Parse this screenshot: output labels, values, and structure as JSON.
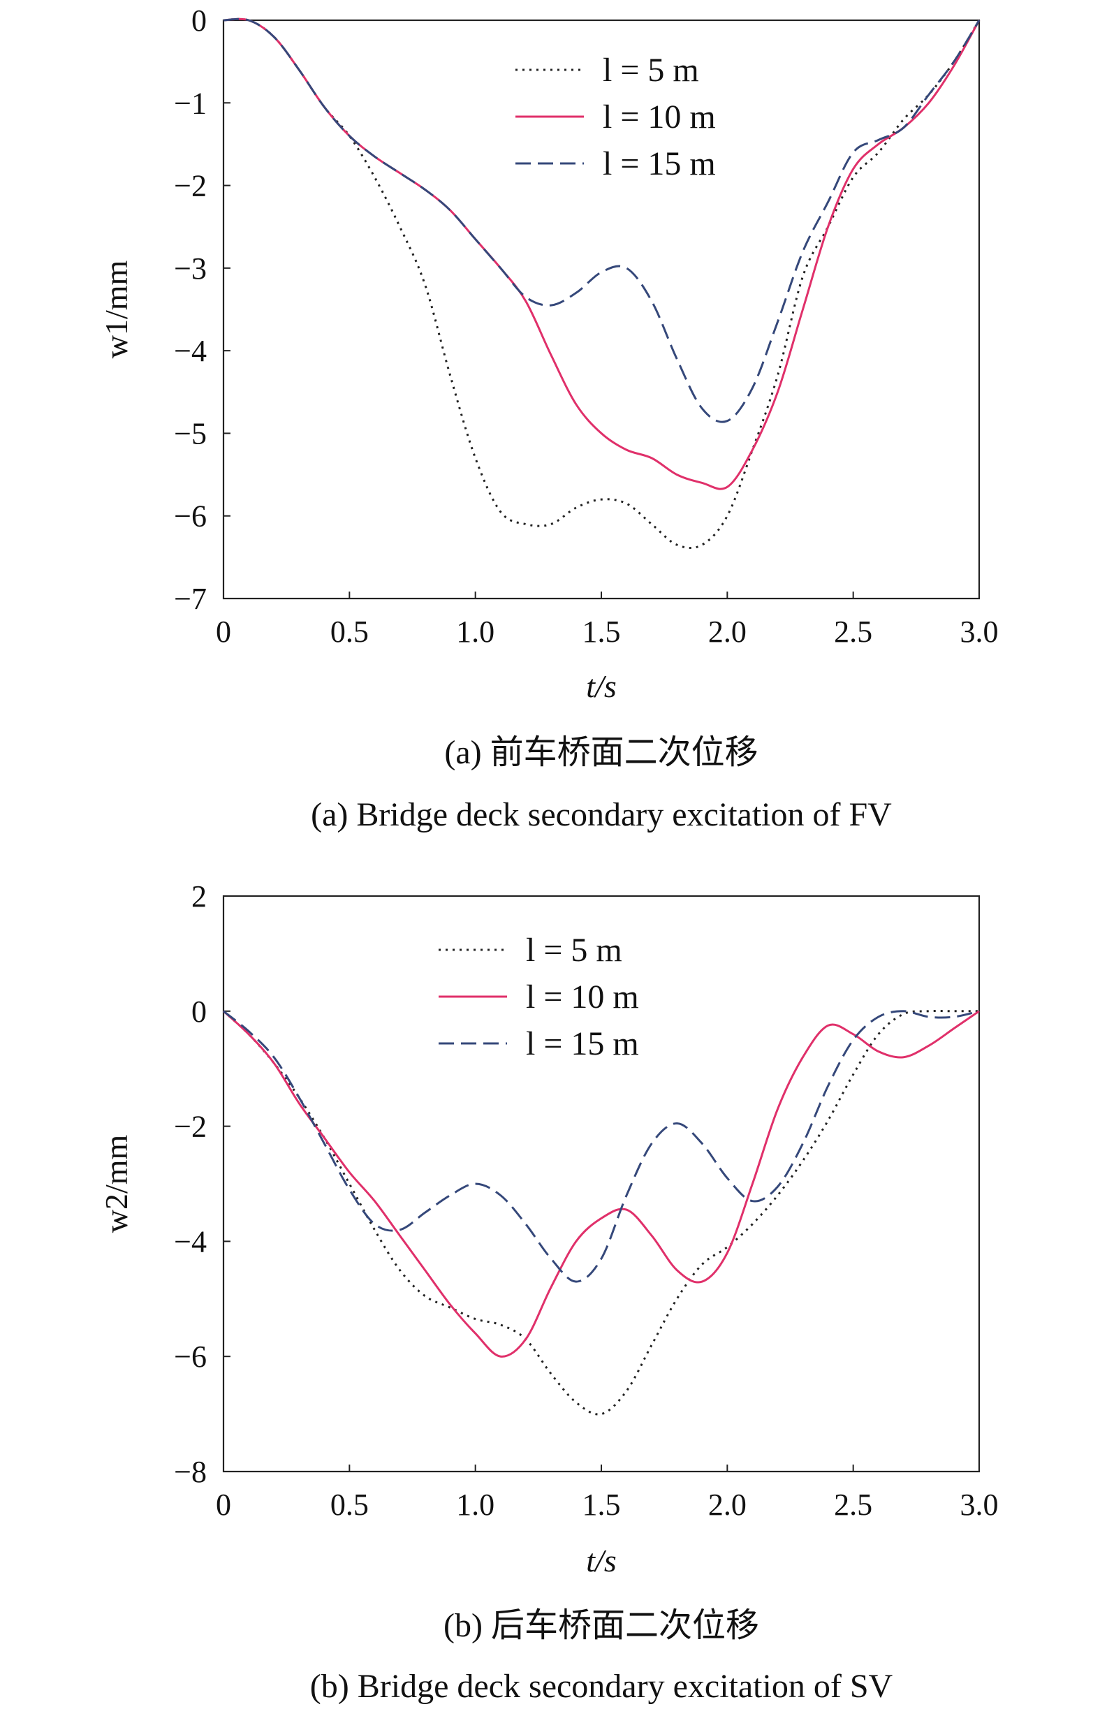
{
  "chart_data": [
    {
      "type": "line",
      "caption_cn": "(a) 前车桥面二次位移",
      "caption_en": "(a) Bridge deck secondary excitation of FV",
      "xlabel": "t/s",
      "ylabel": "w1/mm",
      "xlim": [
        0,
        3.0
      ],
      "ylim": [
        -7,
        0
      ],
      "xticks": [
        "0",
        "0.5",
        "1.0",
        "1.5",
        "2.0",
        "2.5",
        "3.0"
      ],
      "yticks": [
        "0",
        "−1",
        "−2",
        "−3",
        "−4",
        "−5",
        "−6",
        "−7"
      ],
      "legend_position": "top-center",
      "series": [
        {
          "name": "l = 5 m",
          "style": "dotted",
          "color": "#222222",
          "x": [
            0,
            0.1,
            0.2,
            0.3,
            0.4,
            0.5,
            0.6,
            0.7,
            0.8,
            0.9,
            1.0,
            1.1,
            1.2,
            1.3,
            1.4,
            1.5,
            1.6,
            1.7,
            1.8,
            1.9,
            2.0,
            2.1,
            2.2,
            2.3,
            2.4,
            2.5,
            2.6,
            2.7,
            2.8,
            2.9,
            3.0
          ],
          "y": [
            0,
            0,
            -0.2,
            -0.6,
            -1.05,
            -1.4,
            -1.9,
            -2.5,
            -3.2,
            -4.3,
            -5.3,
            -5.95,
            -6.1,
            -6.1,
            -5.9,
            -5.8,
            -5.85,
            -6.1,
            -6.35,
            -6.35,
            -6.0,
            -5.2,
            -4.3,
            -3.1,
            -2.5,
            -1.9,
            -1.6,
            -1.2,
            -0.9,
            -0.5,
            0
          ]
        },
        {
          "name": "l = 10 m",
          "style": "solid",
          "color": "#e0306a",
          "x": [
            0,
            0.1,
            0.2,
            0.3,
            0.4,
            0.5,
            0.6,
            0.7,
            0.8,
            0.9,
            1.0,
            1.1,
            1.2,
            1.3,
            1.4,
            1.5,
            1.6,
            1.7,
            1.8,
            1.9,
            2.0,
            2.1,
            2.2,
            2.3,
            2.4,
            2.5,
            2.6,
            2.7,
            2.8,
            2.9,
            3.0
          ],
          "y": [
            0,
            0,
            -0.2,
            -0.6,
            -1.05,
            -1.4,
            -1.65,
            -1.85,
            -2.05,
            -2.3,
            -2.65,
            -3.0,
            -3.4,
            -4.05,
            -4.65,
            -5.0,
            -5.2,
            -5.3,
            -5.5,
            -5.6,
            -5.65,
            -5.2,
            -4.5,
            -3.5,
            -2.5,
            -1.8,
            -1.5,
            -1.3,
            -1.0,
            -0.55,
            0
          ]
        },
        {
          "name": "l = 15 m",
          "style": "dashed",
          "color": "#35487a",
          "x": [
            0,
            0.1,
            0.2,
            0.3,
            0.4,
            0.5,
            0.6,
            0.7,
            0.8,
            0.9,
            1.0,
            1.1,
            1.2,
            1.3,
            1.4,
            1.5,
            1.6,
            1.7,
            1.8,
            1.9,
            2.0,
            2.1,
            2.2,
            2.3,
            2.4,
            2.5,
            2.6,
            2.7,
            2.8,
            2.9,
            3.0
          ],
          "y": [
            0,
            0,
            -0.2,
            -0.6,
            -1.05,
            -1.4,
            -1.65,
            -1.85,
            -2.05,
            -2.3,
            -2.65,
            -3.0,
            -3.35,
            -3.45,
            -3.3,
            -3.05,
            -3.0,
            -3.4,
            -4.1,
            -4.7,
            -4.85,
            -4.45,
            -3.65,
            -2.8,
            -2.2,
            -1.6,
            -1.45,
            -1.3,
            -0.9,
            -0.5,
            0
          ]
        }
      ]
    },
    {
      "type": "line",
      "caption_cn": "(b) 后车桥面二次位移",
      "caption_en": "(b) Bridge deck secondary excitation of SV",
      "xlabel": "t/s",
      "ylabel": "w2/mm",
      "xlim": [
        0,
        3.0
      ],
      "ylim": [
        -8,
        2
      ],
      "xticks": [
        "0",
        "0.5",
        "1.0",
        "1.5",
        "2.0",
        "2.5",
        "3.0"
      ],
      "yticks": [
        "2",
        "0",
        "−2",
        "−4",
        "−6",
        "−8"
      ],
      "legend_position": "top-center",
      "series": [
        {
          "name": "l = 5 m",
          "style": "dotted",
          "color": "#222222",
          "x": [
            0,
            0.1,
            0.2,
            0.3,
            0.4,
            0.5,
            0.6,
            0.7,
            0.8,
            0.9,
            1.0,
            1.1,
            1.2,
            1.3,
            1.4,
            1.5,
            1.6,
            1.7,
            1.8,
            1.9,
            2.0,
            2.1,
            2.2,
            2.3,
            2.4,
            2.5,
            2.6,
            2.7,
            2.8,
            2.9,
            3.0
          ],
          "y": [
            0,
            -0.4,
            -0.9,
            -1.5,
            -2.2,
            -3.0,
            -3.8,
            -4.5,
            -4.95,
            -5.15,
            -5.35,
            -5.45,
            -5.7,
            -6.3,
            -6.8,
            -7.0,
            -6.6,
            -5.8,
            -5.0,
            -4.4,
            -4.1,
            -3.7,
            -3.2,
            -2.6,
            -1.9,
            -1.1,
            -0.4,
            -0.05,
            0,
            0,
            0
          ]
        },
        {
          "name": "l = 10 m",
          "style": "solid",
          "color": "#e0306a",
          "x": [
            0,
            0.1,
            0.2,
            0.3,
            0.4,
            0.5,
            0.6,
            0.7,
            0.8,
            0.9,
            1.0,
            1.1,
            1.2,
            1.3,
            1.4,
            1.5,
            1.6,
            1.7,
            1.8,
            1.9,
            2.0,
            2.1,
            2.2,
            2.3,
            2.4,
            2.5,
            2.6,
            2.7,
            2.8,
            2.9,
            3.0
          ],
          "y": [
            0,
            -0.4,
            -0.9,
            -1.6,
            -2.2,
            -2.8,
            -3.3,
            -3.9,
            -4.5,
            -5.1,
            -5.6,
            -6.0,
            -5.7,
            -4.8,
            -4.0,
            -3.6,
            -3.45,
            -3.9,
            -4.5,
            -4.7,
            -4.2,
            -3.0,
            -1.7,
            -0.8,
            -0.25,
            -0.4,
            -0.7,
            -0.8,
            -0.6,
            -0.3,
            0
          ]
        },
        {
          "name": "l = 15 m",
          "style": "dashed",
          "color": "#35487a",
          "x": [
            0,
            0.1,
            0.2,
            0.3,
            0.4,
            0.5,
            0.6,
            0.7,
            0.8,
            0.9,
            1.0,
            1.1,
            1.2,
            1.3,
            1.4,
            1.5,
            1.6,
            1.7,
            1.8,
            1.9,
            2.0,
            2.1,
            2.2,
            2.3,
            2.4,
            2.5,
            2.6,
            2.7,
            2.8,
            2.9,
            3.0
          ],
          "y": [
            0,
            -0.35,
            -0.8,
            -1.5,
            -2.3,
            -3.1,
            -3.7,
            -3.8,
            -3.5,
            -3.2,
            -3.0,
            -3.2,
            -3.7,
            -4.3,
            -4.7,
            -4.3,
            -3.2,
            -2.3,
            -1.95,
            -2.3,
            -2.9,
            -3.3,
            -3.05,
            -2.3,
            -1.3,
            -0.5,
            -0.1,
            0,
            -0.1,
            -0.1,
            0
          ]
        }
      ]
    }
  ]
}
